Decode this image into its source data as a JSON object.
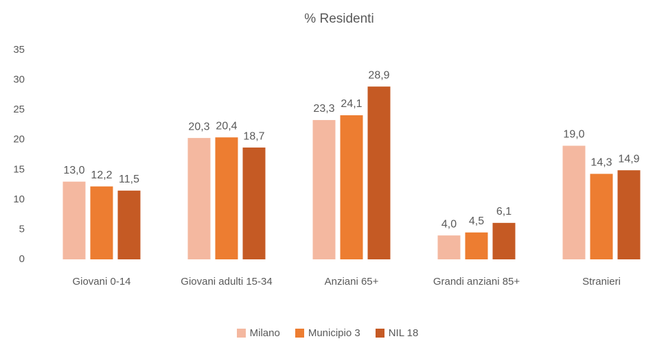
{
  "chart_data": {
    "type": "bar",
    "title": "% Residenti",
    "categories": [
      "Giovani 0-14",
      "Giovani adulti 15-34",
      "Anziani 65+",
      "Grandi anziani 85+",
      "Stranieri"
    ],
    "series": [
      {
        "name": "Milano",
        "color": "#f4b8a0",
        "values": [
          13.0,
          20.3,
          23.3,
          4.0,
          19.0
        ],
        "value_labels": [
          "13,0",
          "20,3",
          "23,3",
          "4,0",
          "19,0"
        ]
      },
      {
        "name": "Municipio 3",
        "color": "#ed7d31",
        "values": [
          12.2,
          20.4,
          24.1,
          4.5,
          14.3
        ],
        "value_labels": [
          "12,2",
          "20,4",
          "24,1",
          "4,5",
          "14,3"
        ]
      },
      {
        "name": "NIL 18",
        "color": "#c55a24",
        "values": [
          11.5,
          18.7,
          28.9,
          6.1,
          14.9
        ],
        "value_labels": [
          "11,5",
          "18,7",
          "28,9",
          "6,1",
          "14,9"
        ]
      }
    ],
    "ylim": [
      0,
      35
    ],
    "yticks": [
      0,
      5,
      10,
      15,
      20,
      25,
      30,
      35
    ],
    "grid": false,
    "legend": "bottom"
  }
}
